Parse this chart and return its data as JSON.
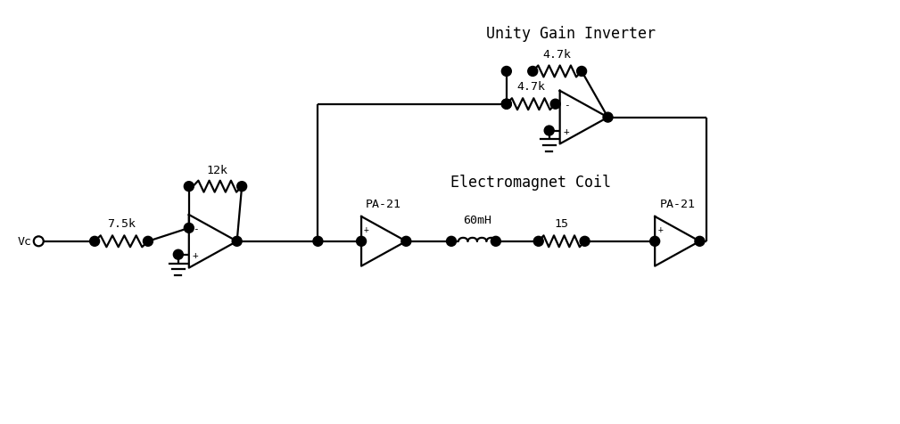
{
  "title": "Unity Gain Inverter",
  "subtitle": "Electromagnet Coil",
  "label_vc": "Vc",
  "label_r1": "7.5k",
  "label_r2": "12k",
  "label_r3": "4.7k",
  "label_r4": "4.7k",
  "label_pa21_1": "PA-21",
  "label_pa21_2": "PA-21",
  "label_ind": "60mH",
  "label_res": "15",
  "bg_color": "#ffffff",
  "line_color": "#000000",
  "font_color": "#000000",
  "font_family": "monospace",
  "title_fontsize": 12,
  "label_fontsize": 9.5,
  "sign_fontsize": 8,
  "lw": 1.6,
  "dot_r": 0.055,
  "figw": 10.09,
  "figh": 4.77,
  "xlim": [
    0,
    10.09
  ],
  "ylim": [
    0,
    4.77
  ]
}
